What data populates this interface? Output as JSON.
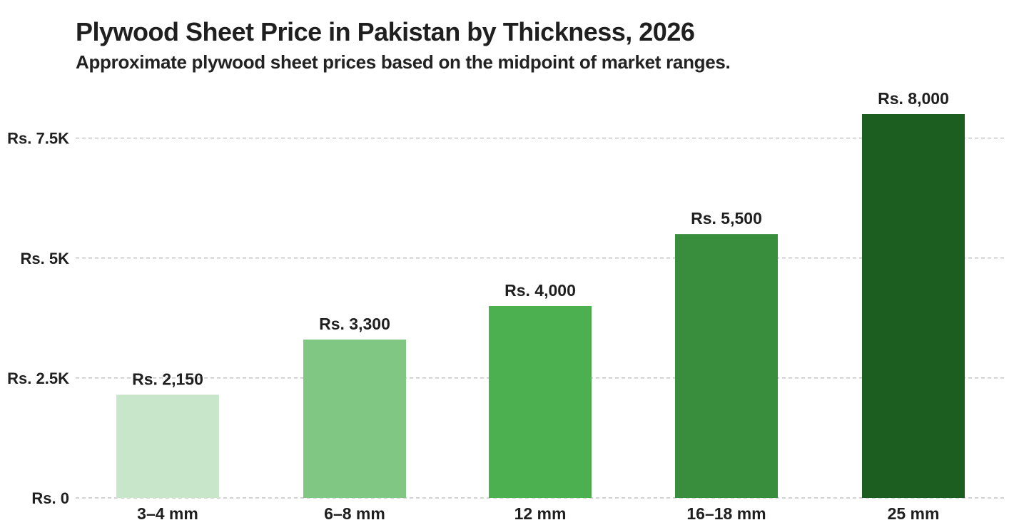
{
  "chart_data": {
    "type": "bar",
    "title": "Plywood Sheet Price in Pakistan by Thickness, 2026",
    "subtitle": "Approximate plywood sheet prices based on the midpoint of market ranges.",
    "xlabel": "",
    "ylabel": "",
    "categories": [
      "3–4 mm",
      "6–8 mm",
      "12 mm",
      "16–18 mm",
      "25 mm"
    ],
    "values": [
      2150,
      3300,
      4000,
      5500,
      8000
    ],
    "data_labels": [
      "Rs. 2,150",
      "Rs. 3,300",
      "Rs. 4,000",
      "Rs. 5,500",
      "Rs. 8,000"
    ],
    "bar_colors": [
      "#c8e6c9",
      "#81c784",
      "#4caf50",
      "#388e3c",
      "#1b5e20"
    ],
    "ylim": [
      0,
      8000
    ],
    "yticks": [
      0,
      2500,
      5000,
      7500
    ],
    "ytick_labels": [
      "Rs. 0",
      "Rs. 2.5K",
      "Rs. 5K",
      "Rs. 7.5K"
    ],
    "grid": true,
    "legend": "none"
  }
}
